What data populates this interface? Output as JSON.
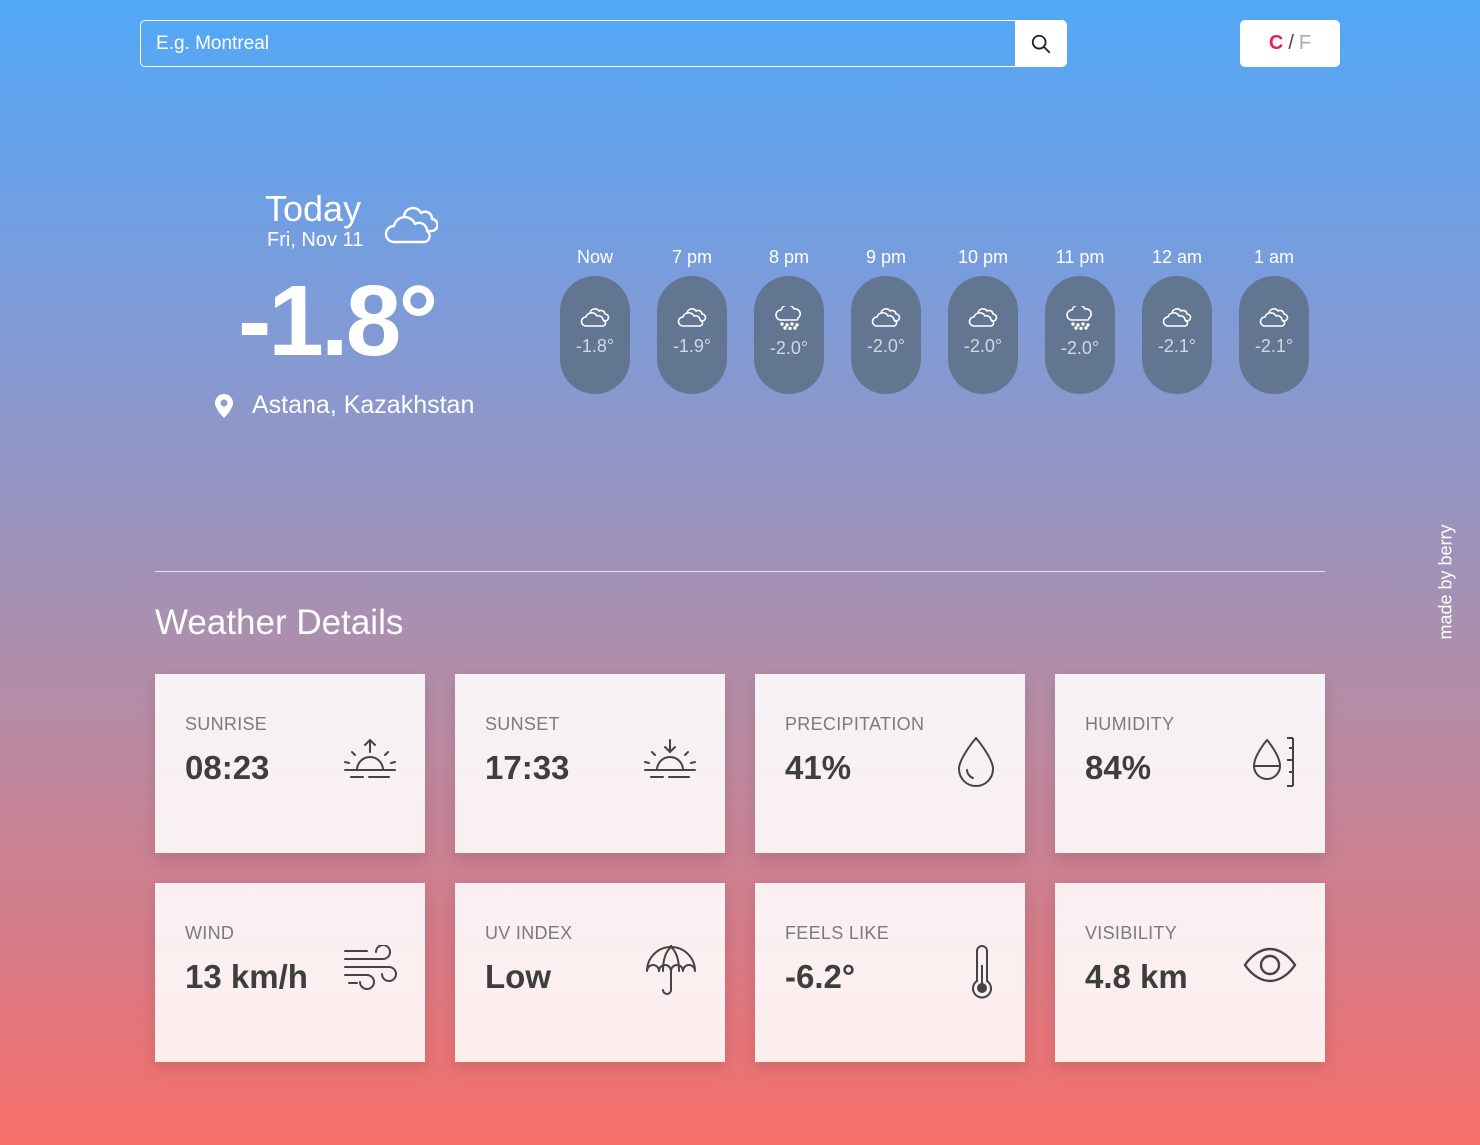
{
  "search": {
    "placeholder": "E.g. Montreal"
  },
  "units": {
    "celsius": "C",
    "separator": "/",
    "fahrenheit": "F",
    "active": "C",
    "active_color": "#e0245e"
  },
  "today": {
    "label": "Today",
    "date": "Fri, Nov 11",
    "temperature": "-1.8°",
    "icon": "cloud-icon",
    "location": "Astana, Kazakhstan"
  },
  "hourly": [
    {
      "time": "Now",
      "temp": "-1.8°",
      "icon": "cloud-icon"
    },
    {
      "time": "7 pm",
      "temp": "-1.9°",
      "icon": "cloud-icon"
    },
    {
      "time": "8 pm",
      "temp": "-2.0°",
      "icon": "snow-cloud-icon"
    },
    {
      "time": "9 pm",
      "temp": "-2.0°",
      "icon": "cloud-icon"
    },
    {
      "time": "10 pm",
      "temp": "-2.0°",
      "icon": "cloud-icon"
    },
    {
      "time": "11 pm",
      "temp": "-2.0°",
      "icon": "snow-cloud-icon"
    },
    {
      "time": "12 am",
      "temp": "-2.1°",
      "icon": "cloud-icon"
    },
    {
      "time": "1 am",
      "temp": "-2.1°",
      "icon": "cloud-icon"
    }
  ],
  "details": {
    "title": "Weather Details",
    "cards": [
      {
        "label": "SUNRISE",
        "value": "08:23",
        "icon": "sunrise-icon"
      },
      {
        "label": "SUNSET",
        "value": "17:33",
        "icon": "sunset-icon"
      },
      {
        "label": "PRECIPITATION",
        "value": "41%",
        "icon": "droplet-icon"
      },
      {
        "label": "HUMIDITY",
        "value": "84%",
        "icon": "humidity-icon"
      },
      {
        "label": "WIND",
        "value": "13 km/h",
        "icon": "wind-icon"
      },
      {
        "label": "UV INDEX",
        "value": "Low",
        "icon": "umbrella-icon"
      },
      {
        "label": "FEELS LIKE",
        "value": "-6.2°",
        "icon": "thermometer-icon"
      },
      {
        "label": "VISIBILITY",
        "value": "4.8 km",
        "icon": "eye-icon"
      }
    ]
  },
  "footer": {
    "credit": "made by berry"
  }
}
